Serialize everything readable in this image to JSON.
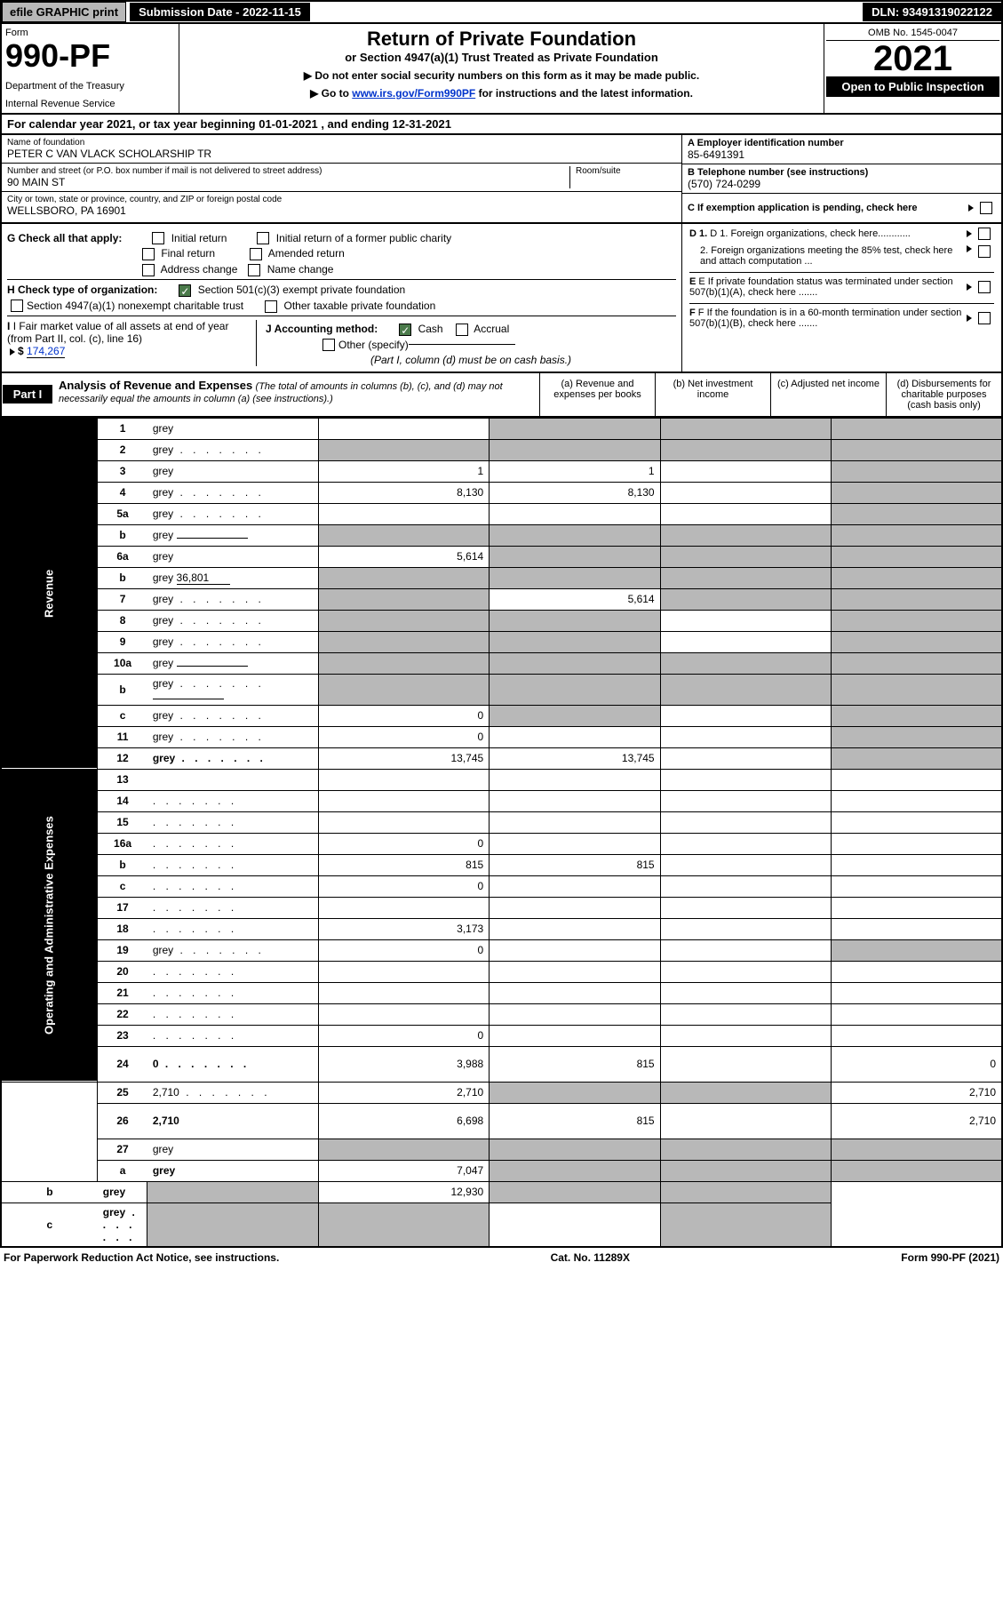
{
  "topbar": {
    "efile": "efile GRAPHIC print",
    "submission": "Submission Date - 2022-11-15",
    "dln": "DLN: 93491319022122"
  },
  "header": {
    "form_label": "Form",
    "form_num": "990-PF",
    "dept1": "Department of the Treasury",
    "dept2": "Internal Revenue Service",
    "title": "Return of Private Foundation",
    "subtitle": "or Section 4947(a)(1) Trust Treated as Private Foundation",
    "instr1": "▶ Do not enter social security numbers on this form as it may be made public.",
    "instr2": "▶ Go to ",
    "instr2_link": "www.irs.gov/Form990PF",
    "instr2_suffix": " for instructions and the latest information.",
    "omb": "OMB No. 1545-0047",
    "year": "2021",
    "open": "Open to Public Inspection"
  },
  "calyear": "For calendar year 2021, or tax year beginning 01-01-2021           , and ending 12-31-2021",
  "info": {
    "name_label": "Name of foundation",
    "name": "PETER C VAN VLACK SCHOLARSHIP TR",
    "addr_label": "Number and street (or P.O. box number if mail is not delivered to street address)",
    "addr": "90 MAIN ST",
    "room_label": "Room/suite",
    "city_label": "City or town, state or province, country, and ZIP or foreign postal code",
    "city": "WELLSBORO, PA  16901",
    "a_label": "A Employer identification number",
    "a_val": "85-6491391",
    "b_label": "B Telephone number (see instructions)",
    "b_val": "(570) 724-0299",
    "c_label": "C If exemption application is pending, check here",
    "d1": "D 1. Foreign organizations, check here............",
    "d2": "2. Foreign organizations meeting the 85% test, check here and attach computation ...",
    "e_label": "E If private foundation status was terminated under section 507(b)(1)(A), check here .......",
    "f_label": "F If the foundation is in a 60-month termination under section 507(b)(1)(B), check here .......",
    "g_label": "G Check all that apply:",
    "g_initial": "Initial return",
    "g_initial_former": "Initial return of a former public charity",
    "g_final": "Final return",
    "g_amended": "Amended return",
    "g_address": "Address change",
    "g_name": "Name change",
    "h_label": "H Check type of organization:",
    "h_501c3": "Section 501(c)(3) exempt private foundation",
    "h_4947": "Section 4947(a)(1) nonexempt charitable trust",
    "h_other": "Other taxable private foundation",
    "i_label": "I Fair market value of all assets at end of year (from Part II, col. (c), line 16)",
    "i_val": "174,267",
    "j_label": "J Accounting method:",
    "j_cash": "Cash",
    "j_accrual": "Accrual",
    "j_other": "Other (specify)",
    "j_note": "(Part I, column (d) must be on cash basis.)"
  },
  "part1": {
    "label": "Part I",
    "title": "Analysis of Revenue and Expenses",
    "note": "(The total of amounts in columns (b), (c), and (d) may not necessarily equal the amounts in column (a) (see instructions).)",
    "col_a": "(a) Revenue and expenses per books",
    "col_b": "(b) Net investment income",
    "col_c": "(c) Adjusted net income",
    "col_d": "(d) Disbursements for charitable purposes (cash basis only)"
  },
  "sidelabels": {
    "revenue": "Revenue",
    "expenses": "Operating and Administrative Expenses"
  },
  "rows": [
    {
      "n": "1",
      "d": "grey",
      "a": "",
      "b": "grey",
      "c": "grey"
    },
    {
      "n": "2",
      "d": "grey",
      "a": "grey",
      "b": "grey",
      "c": "grey",
      "dots": true
    },
    {
      "n": "3",
      "d": "grey",
      "a": "1",
      "b": "1",
      "c": ""
    },
    {
      "n": "4",
      "d": "grey",
      "a": "8,130",
      "b": "8,130",
      "c": "",
      "dots": true
    },
    {
      "n": "5a",
      "d": "grey",
      "a": "",
      "b": "",
      "c": "",
      "dots": true
    },
    {
      "n": "b",
      "d": "grey",
      "a": "grey",
      "b": "grey",
      "c": "grey",
      "inline": true
    },
    {
      "n": "6a",
      "d": "grey",
      "a": "5,614",
      "b": "grey",
      "c": "grey"
    },
    {
      "n": "b",
      "d": "grey",
      "inline_val": "36,801",
      "a": "grey",
      "b": "grey",
      "c": "grey"
    },
    {
      "n": "7",
      "d": "grey",
      "a": "grey",
      "b": "5,614",
      "c": "grey",
      "dots": true
    },
    {
      "n": "8",
      "d": "grey",
      "a": "grey",
      "b": "grey",
      "c": "",
      "dots": true
    },
    {
      "n": "9",
      "d": "grey",
      "a": "grey",
      "b": "grey",
      "c": "",
      "dots": true
    },
    {
      "n": "10a",
      "d": "grey",
      "a": "grey",
      "b": "grey",
      "c": "grey",
      "inline": true
    },
    {
      "n": "b",
      "d": "grey",
      "a": "grey",
      "b": "grey",
      "c": "grey",
      "inline": true,
      "dots": true
    },
    {
      "n": "c",
      "d": "grey",
      "a": "0",
      "b": "grey",
      "c": "",
      "dots": true
    },
    {
      "n": "11",
      "d": "grey",
      "a": "0",
      "b": "",
      "c": "",
      "dots": true
    },
    {
      "n": "12",
      "d": "grey",
      "a": "13,745",
      "b": "13,745",
      "c": "",
      "bold": true,
      "dots": true
    },
    {
      "n": "13",
      "d": "",
      "a": "",
      "b": "",
      "c": ""
    },
    {
      "n": "14",
      "d": "",
      "a": "",
      "b": "",
      "c": "",
      "dots": true
    },
    {
      "n": "15",
      "d": "",
      "a": "",
      "b": "",
      "c": "",
      "dots": true
    },
    {
      "n": "16a",
      "d": "",
      "a": "0",
      "b": "",
      "c": "",
      "dots": true
    },
    {
      "n": "b",
      "d": "",
      "a": "815",
      "b": "815",
      "c": "",
      "dots": true
    },
    {
      "n": "c",
      "d": "",
      "a": "0",
      "b": "",
      "c": "",
      "dots": true
    },
    {
      "n": "17",
      "d": "",
      "a": "",
      "b": "",
      "c": "",
      "dots": true
    },
    {
      "n": "18",
      "d": "",
      "a": "3,173",
      "b": "",
      "c": "",
      "dots": true
    },
    {
      "n": "19",
      "d": "grey",
      "a": "0",
      "b": "",
      "c": "",
      "dots": true
    },
    {
      "n": "20",
      "d": "",
      "a": "",
      "b": "",
      "c": "",
      "dots": true
    },
    {
      "n": "21",
      "d": "",
      "a": "",
      "b": "",
      "c": "",
      "dots": true
    },
    {
      "n": "22",
      "d": "",
      "a": "",
      "b": "",
      "c": "",
      "dots": true
    },
    {
      "n": "23",
      "d": "",
      "a": "0",
      "b": "",
      "c": "",
      "dots": true
    },
    {
      "n": "24",
      "d": "0",
      "a": "3,988",
      "b": "815",
      "c": "",
      "bold": true,
      "dots": true,
      "tall": true
    },
    {
      "n": "25",
      "d": "2,710",
      "a": "2,710",
      "b": "grey",
      "c": "grey",
      "dots": true
    },
    {
      "n": "26",
      "d": "2,710",
      "a": "6,698",
      "b": "815",
      "c": "",
      "bold": true,
      "tall": true
    },
    {
      "n": "27",
      "d": "grey",
      "a": "grey",
      "b": "grey",
      "c": "grey"
    },
    {
      "n": "a",
      "d": "grey",
      "a": "7,047",
      "b": "grey",
      "c": "grey",
      "bold": true
    },
    {
      "n": "b",
      "d": "grey",
      "a": "grey",
      "b": "12,930",
      "c": "grey",
      "bold": true
    },
    {
      "n": "c",
      "d": "grey",
      "a": "grey",
      "b": "grey",
      "c": "",
      "bold": true,
      "dots": true
    }
  ],
  "footer": {
    "left": "For Paperwork Reduction Act Notice, see instructions.",
    "mid": "Cat. No. 11289X",
    "right": "Form 990-PF (2021)"
  }
}
